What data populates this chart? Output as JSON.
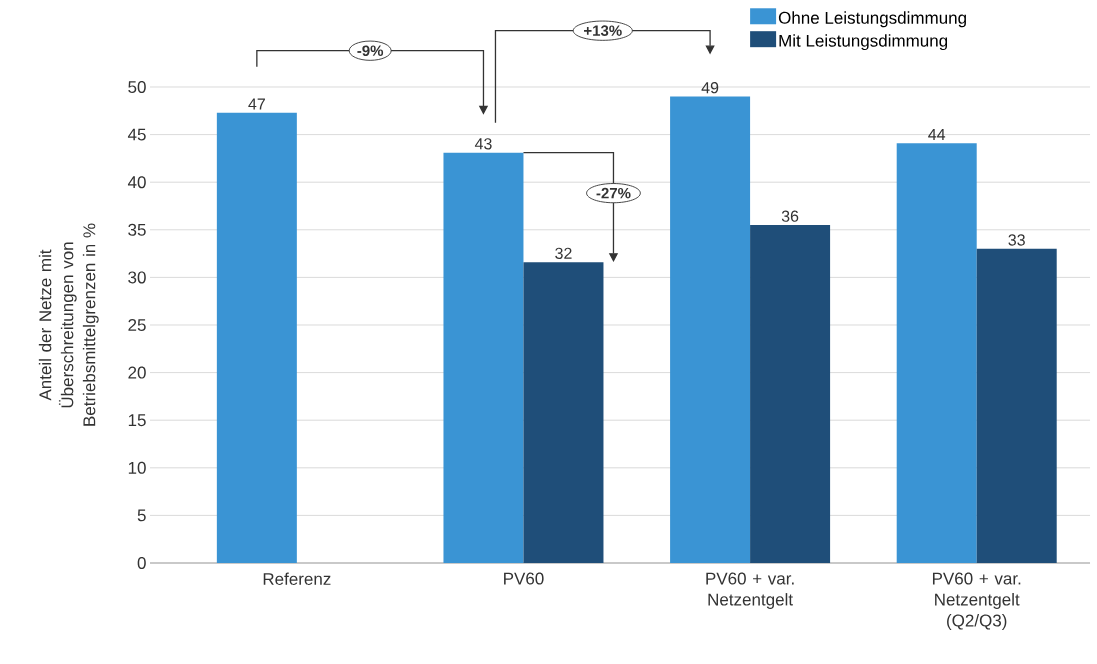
{
  "chart_data": {
    "type": "bar",
    "ylabel": "Anteil der Netze mit Überschreitungen von Betriebsmittelgrenzen in %",
    "categories": [
      "Referenz",
      "PV60",
      "PV60 + var. Netzentgelt",
      "PV60 + var. Netzentgelt (Q2/Q3)"
    ],
    "series": [
      {
        "name": "Ohne Leistungsdimmung",
        "color": "#3a94d4",
        "values": [
          47.3,
          43.1,
          49.0,
          44.1
        ],
        "value_labels": [
          "47",
          "43",
          "49",
          "44"
        ]
      },
      {
        "name": "Mit Leistungsdimmung",
        "color": "#1f4e79",
        "values": [
          null,
          31.6,
          35.5,
          33.0
        ],
        "value_labels": [
          null,
          "32",
          "36",
          "33"
        ]
      }
    ],
    "ylim": [
      0,
      50
    ],
    "yticks": [
      0,
      5,
      10,
      15,
      20,
      25,
      30,
      35,
      40,
      45,
      50
    ],
    "grid": "y",
    "legend": "top right",
    "annotations": [
      "-9%",
      "+13%",
      "-27%"
    ]
  }
}
